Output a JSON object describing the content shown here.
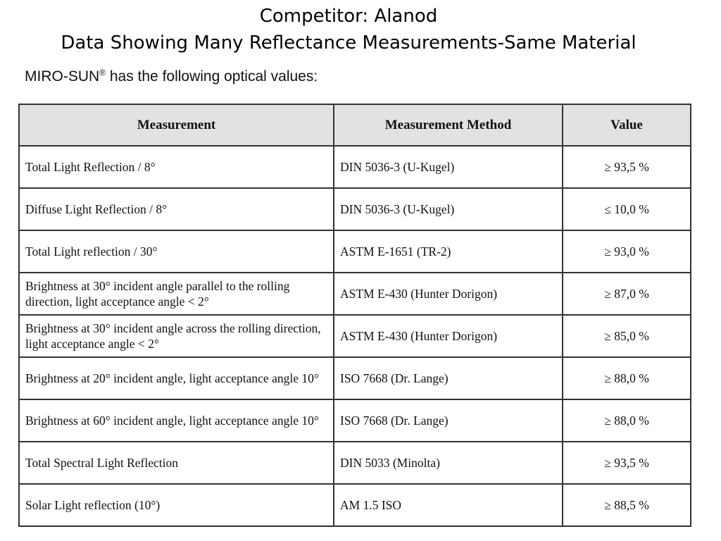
{
  "title": {
    "line1": "Competitor: Alanod",
    "line2": "Data Showing Many Reflectance Measurements-Same Material"
  },
  "intro": {
    "product": "MIRO-SUN",
    "mark": "®",
    "text": " has the following optical values:"
  },
  "table": {
    "headers": [
      "Measurement",
      "Measurement Method",
      "Value"
    ],
    "rows": [
      {
        "measurement": "Total Light Reflection / 8°",
        "method": "DIN 5036-3 (U-Kugel)",
        "value": "≥ 93,5 %"
      },
      {
        "measurement": "Diffuse Light Reflection / 8°",
        "method": "DIN 5036-3 (U-Kugel)",
        "value": "≤ 10,0 %"
      },
      {
        "measurement": "Total Light reflection / 30°",
        "method": "ASTM E-1651 (TR-2)",
        "value": "≥ 93,0 %"
      },
      {
        "measurement": "Brightness at 30° incident angle parallel to the rolling direction, light acceptance angle < 2°",
        "method": "ASTM E-430 (Hunter Dorigon)",
        "value": "≥ 87,0 %"
      },
      {
        "measurement": "Brightness at 30° incident angle across the rolling direction, light acceptance angle < 2°",
        "method": "ASTM E-430 (Hunter Dorigon)",
        "value": "≥ 85,0 %"
      },
      {
        "measurement": "Brightness at 20° incident angle, light acceptance angle 10°",
        "method": "ISO 7668 (Dr. Lange)",
        "value": "≥ 88,0 %"
      },
      {
        "measurement": "Brightness at 60° incident angle, light acceptance angle 10°",
        "method": "ISO 7668 (Dr. Lange)",
        "value": "≥ 88,0 %"
      },
      {
        "measurement": "Total Spectral Light Reflection",
        "method": "DIN 5033 (Minolta)",
        "value": "≥ 93,5 %"
      },
      {
        "measurement": "Solar Light reflection (10°)",
        "method": "AM 1.5 ISO",
        "value": "≥ 88,5 %"
      }
    ]
  }
}
